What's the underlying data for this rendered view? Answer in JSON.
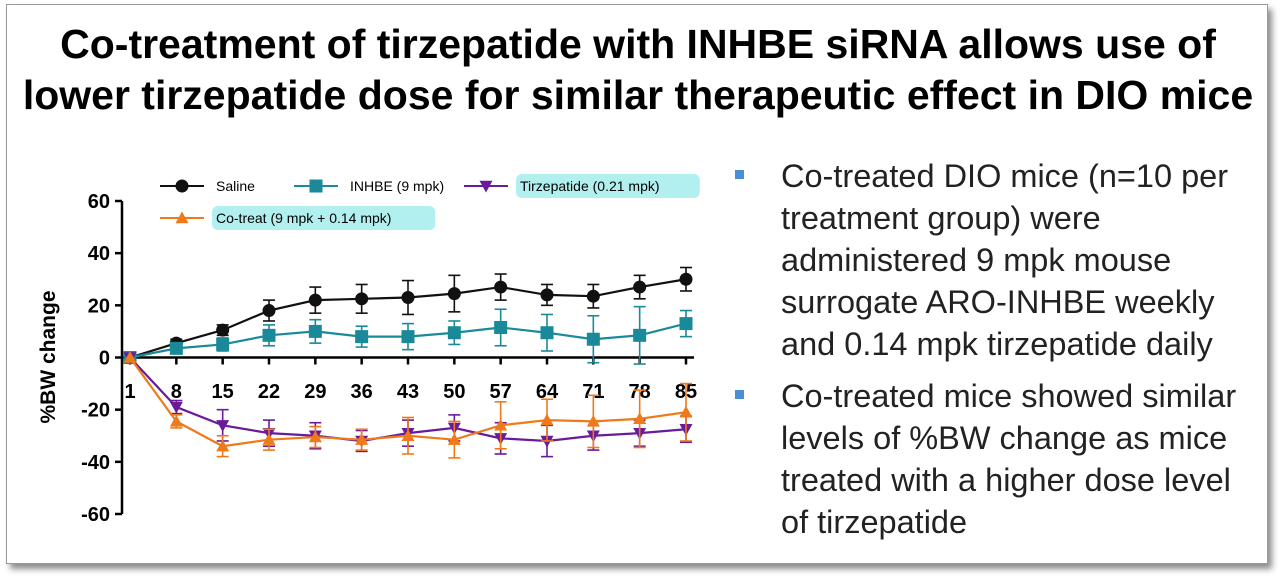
{
  "title": {
    "line1": "Co-treatment of tirzepatide with INHBE siRNA allows use of",
    "line2": "lower tirzepatide dose for similar therapeutic effect in DIO mice"
  },
  "bullets": [
    "Co-treated DIO mice (n=10 per treatment group) were administered 9 mpk mouse surrogate ARO-INHBE weekly and 0.14 mpk tirzepatide daily",
    "Co-treated mice showed similar levels of %BW change as mice treated with a higher dose level of tirzepatide"
  ],
  "colors": {
    "saline": "#111111",
    "inhbe": "#1a8a9a",
    "tirzepatide": "#6a1b9a",
    "cotreat": "#f07a1a",
    "legend_highlight": "#b2f0ef",
    "bullet": "#4a8fd4"
  },
  "chart_data": {
    "type": "line",
    "title": "",
    "xlabel": "",
    "ylabel": "%BW change",
    "ylim": [
      -60,
      60
    ],
    "yticks": [
      60,
      40,
      20,
      0,
      -20,
      -40,
      -60
    ],
    "x": [
      1,
      8,
      15,
      22,
      29,
      36,
      43,
      50,
      57,
      64,
      71,
      78,
      85
    ],
    "series": [
      {
        "name": "Saline",
        "marker": "circle",
        "highlight": false,
        "values": [
          0,
          5.5,
          10.5,
          18,
          22,
          22.5,
          23,
          24.5,
          27,
          24,
          23.5,
          27,
          30
        ],
        "errors": [
          0,
          1.5,
          2,
          4,
          5,
          5.5,
          6.5,
          7,
          5,
          4,
          4.5,
          4.5,
          4.5
        ]
      },
      {
        "name": "INHBE (9 mpk)",
        "marker": "square",
        "highlight": false,
        "values": [
          0,
          3.5,
          5,
          8.5,
          10,
          8,
          8,
          9.5,
          11.5,
          9.5,
          7,
          8.5,
          13
        ],
        "errors": [
          0,
          2,
          2.5,
          4,
          4.5,
          4,
          5,
          4.5,
          7,
          7,
          9,
          11,
          5
        ]
      },
      {
        "name": "Tirzepatide (0.21 mpk)",
        "marker": "triangle-down",
        "highlight": true,
        "values": [
          0,
          -19,
          -26,
          -29,
          -30,
          -32,
          -29,
          -27,
          -31,
          -32,
          -30,
          -29,
          -27.5
        ],
        "errors": [
          0,
          2.5,
          6,
          5,
          5,
          4,
          5,
          5,
          6,
          6,
          5.5,
          5,
          5
        ]
      },
      {
        "name": "Co-treat (9 mpk + 0.14 mpk)",
        "marker": "triangle-up",
        "highlight": true,
        "values": [
          0,
          -24.5,
          -34,
          -31.5,
          -30.5,
          -31.5,
          -30,
          -31.5,
          -26,
          -24,
          -24.5,
          -23.5,
          -21
        ],
        "errors": [
          0,
          2.5,
          4,
          4,
          4,
          4,
          7,
          7,
          9,
          8,
          10,
          11,
          11
        ]
      }
    ]
  }
}
